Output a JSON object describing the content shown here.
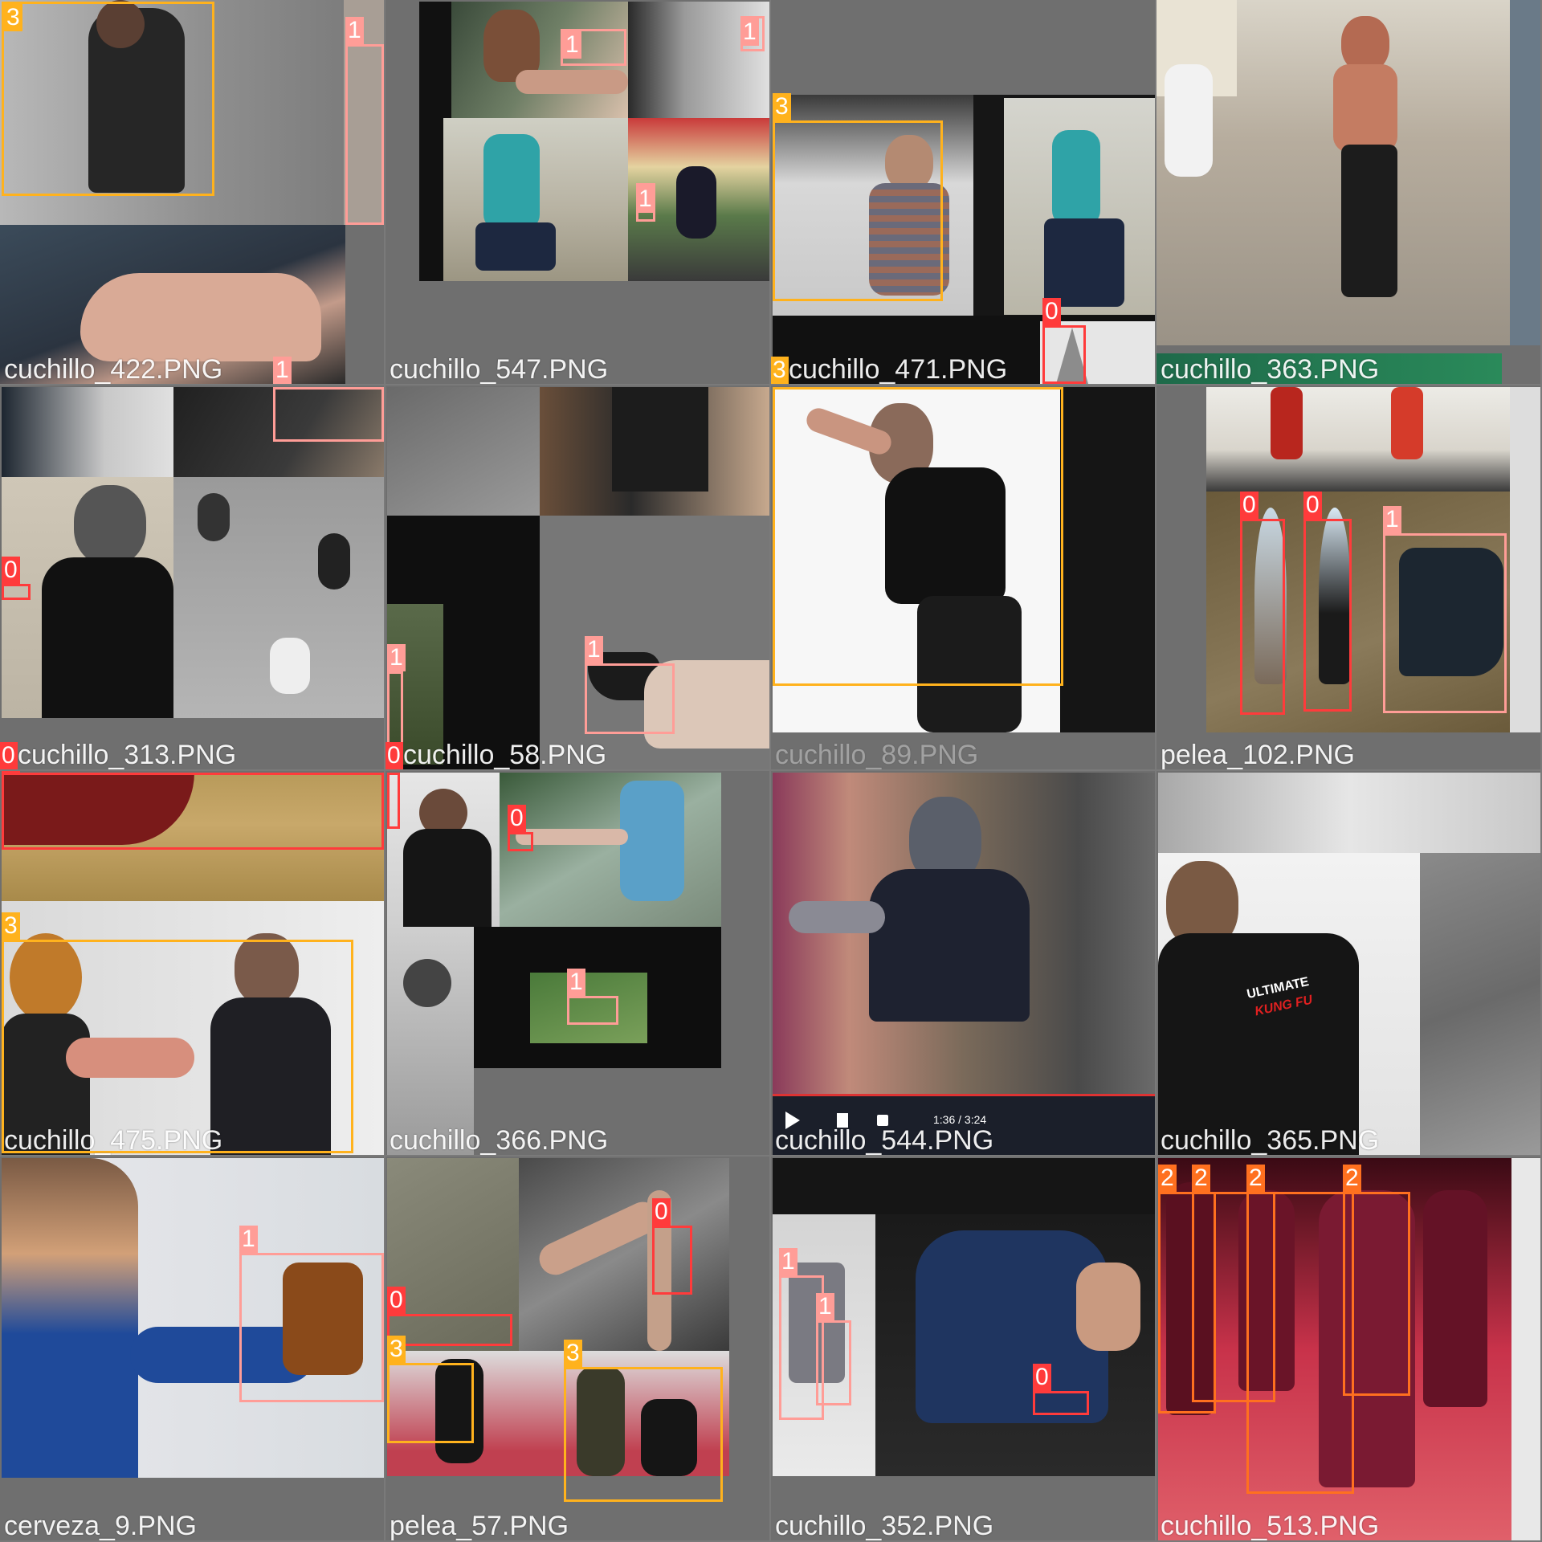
{
  "colors": {
    "class_0": "#ff3b3b",
    "class_1": "#ff9d97",
    "class_2": "#ff701f",
    "class_3": "#ffb21d"
  },
  "tiles": [
    {
      "filename": "cuchillo_422.PNG",
      "labels": [
        "3",
        "1",
        "1"
      ]
    },
    {
      "filename": "cuchillo_547.PNG",
      "labels": [
        "1",
        "1",
        "1"
      ]
    },
    {
      "filename": "cuchillo_471.PNG",
      "labels": [
        "3",
        "0",
        "3"
      ]
    },
    {
      "filename": "cuchillo_363.PNG",
      "labels": []
    },
    {
      "filename": "cuchillo_313.PNG",
      "labels": [
        "0",
        "0"
      ]
    },
    {
      "filename": "cuchillo_58.PNG",
      "labels": [
        "1",
        "1",
        "0"
      ]
    },
    {
      "filename": "cuchillo_89.PNG",
      "labels": [
        "3"
      ]
    },
    {
      "filename": "pelea_102.PNG",
      "labels": [
        "0",
        "0",
        "1"
      ]
    },
    {
      "filename": "cuchillo_475.PNG",
      "labels": [
        "0",
        "3"
      ]
    },
    {
      "filename": "cuchillo_366.PNG",
      "labels": [
        "0",
        "1"
      ]
    },
    {
      "filename": "cuchillo_544.PNG",
      "labels": [],
      "player_time": "1:36 / 3:24"
    },
    {
      "filename": "cuchillo_365.PNG",
      "labels": [],
      "shirt_text_1": "ULTIMATE",
      "shirt_text_2": "KUNG FU"
    },
    {
      "filename": "cerveza_9.PNG",
      "labels": [
        "1"
      ]
    },
    {
      "filename": "pelea_57.PNG",
      "labels": [
        "0",
        "0",
        "3",
        "3"
      ]
    },
    {
      "filename": "cuchillo_352.PNG",
      "labels": [
        "1",
        "1",
        "0"
      ]
    },
    {
      "filename": "cuchillo_513.PNG",
      "labels": [
        "2",
        "2",
        "2",
        "2"
      ]
    }
  ]
}
